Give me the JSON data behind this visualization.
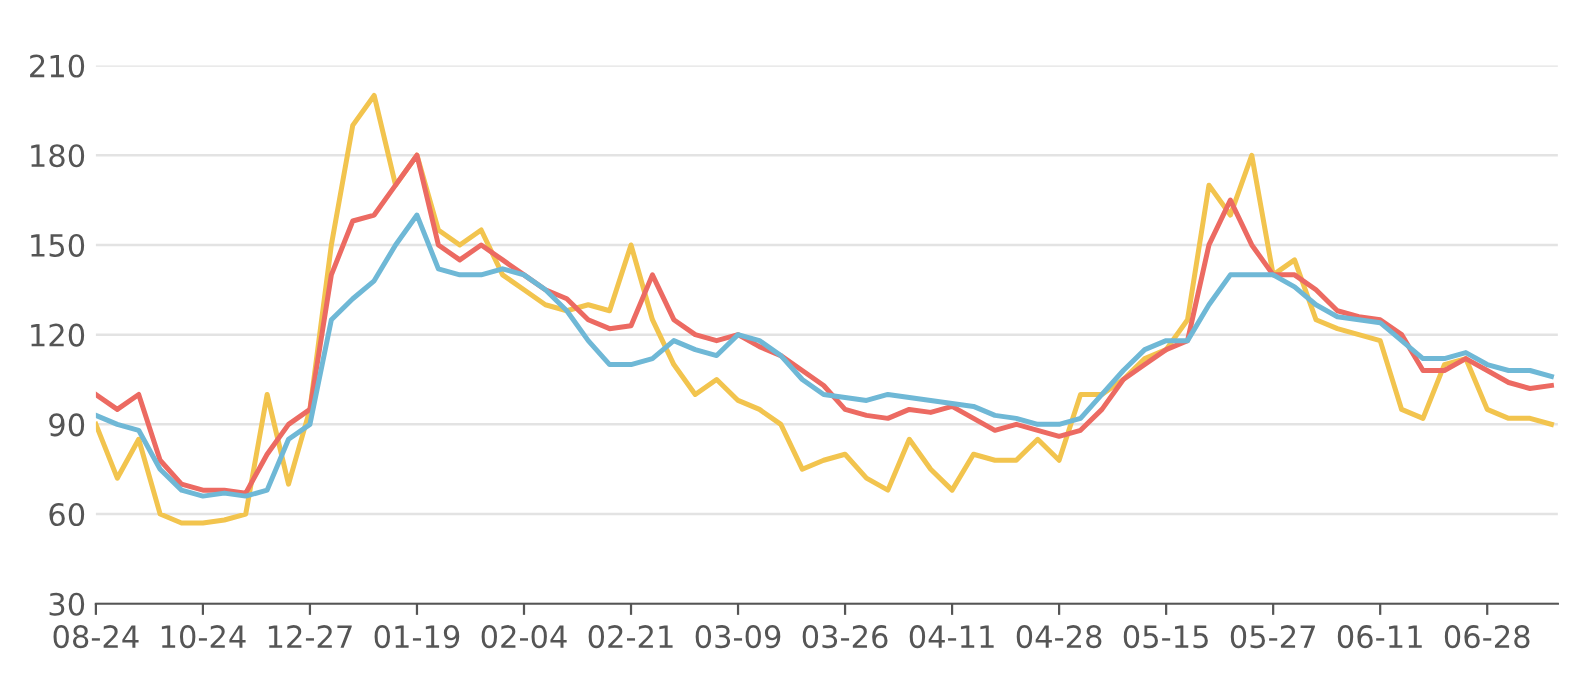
{
  "chart_data": {
    "type": "line",
    "categories": [
      "08-24",
      null,
      null,
      null,
      null,
      "10-24",
      null,
      null,
      null,
      null,
      "12-27",
      null,
      null,
      null,
      null,
      "01-19",
      null,
      null,
      null,
      null,
      "02-04",
      null,
      null,
      null,
      null,
      "02-21",
      null,
      null,
      null,
      null,
      "03-09",
      null,
      null,
      null,
      null,
      "03-26",
      null,
      null,
      null,
      null,
      "04-11",
      null,
      null,
      null,
      null,
      "04-28",
      null,
      null,
      null,
      null,
      "05-15",
      null,
      null,
      null,
      null,
      "05-27",
      null,
      null,
      null,
      null,
      "06-11",
      null,
      null,
      null,
      null,
      "06-28",
      null,
      null,
      null
    ],
    "series": [
      {
        "color": "#f2c44e",
        "values": [
          90,
          72,
          85,
          60,
          57,
          57,
          58,
          60,
          100,
          70,
          95,
          150,
          190,
          200,
          170,
          180,
          155,
          150,
          155,
          140,
          135,
          130,
          128,
          130,
          128,
          150,
          125,
          110,
          100,
          105,
          98,
          95,
          90,
          75,
          78,
          80,
          72,
          68,
          85,
          75,
          68,
          80,
          78,
          78,
          85,
          78,
          100,
          100,
          105,
          112,
          115,
          125,
          170,
          160,
          180,
          140,
          145,
          125,
          122,
          120,
          118,
          95,
          92,
          110,
          112,
          95,
          92,
          92,
          90
        ]
      },
      {
        "color": "#ec6a62",
        "values": [
          100,
          95,
          100,
          78,
          70,
          68,
          68,
          67,
          80,
          90,
          95,
          140,
          158,
          160,
          170,
          180,
          150,
          145,
          150,
          145,
          140,
          135,
          132,
          125,
          122,
          123,
          140,
          125,
          120,
          118,
          120,
          116,
          113,
          108,
          103,
          95,
          93,
          92,
          95,
          94,
          96,
          92,
          88,
          90,
          88,
          86,
          88,
          95,
          105,
          110,
          115,
          118,
          150,
          165,
          150,
          140,
          140,
          135,
          128,
          126,
          125,
          120,
          108,
          108,
          112,
          108,
          104,
          102,
          103
        ]
      },
      {
        "color": "#6fb8d6",
        "values": [
          93,
          90,
          88,
          75,
          68,
          66,
          67,
          66,
          68,
          85,
          90,
          125,
          132,
          138,
          150,
          160,
          142,
          140,
          140,
          142,
          140,
          135,
          128,
          118,
          110,
          110,
          112,
          118,
          115,
          113,
          120,
          118,
          113,
          105,
          100,
          99,
          98,
          100,
          99,
          98,
          97,
          96,
          93,
          92,
          90,
          90,
          92,
          100,
          108,
          115,
          118,
          118,
          130,
          140,
          140,
          140,
          136,
          130,
          126,
          125,
          124,
          118,
          112,
          112,
          114,
          110,
          108,
          108,
          106
        ]
      }
    ],
    "ylim": [
      30,
      210
    ],
    "yticks": [
      30,
      60,
      90,
      120,
      150,
      180,
      210
    ],
    "grid": "y",
    "marker": "none",
    "line_style": "solid",
    "legend": false
  }
}
